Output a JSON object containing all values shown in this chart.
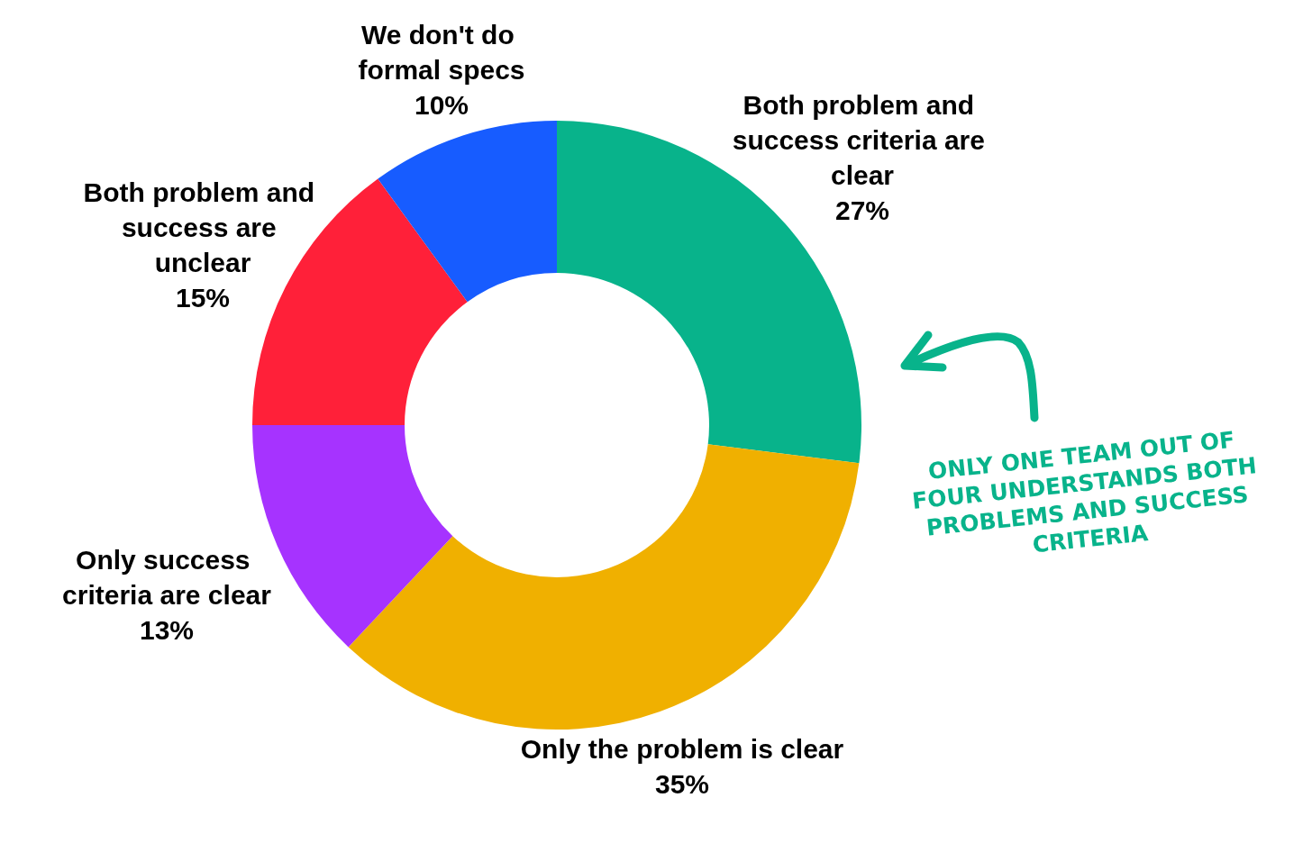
{
  "chart_data": {
    "type": "donut",
    "categories": [
      "Both problem and success criteria are clear",
      "Only the problem is clear",
      "Only success criteria are clear",
      "Both problem and success are unclear",
      "We don't do formal specs"
    ],
    "values": [
      27,
      35,
      13,
      15,
      10
    ],
    "value_labels": [
      "27%",
      "35%",
      "13%",
      "15%",
      "10%"
    ],
    "colors": [
      "#08b38b",
      "#f0b000",
      "#a633ff",
      "#ff2039",
      "#175cff"
    ],
    "legend": false,
    "annotations": [
      "ONLY ONE TEAM OUT OF FOUR UNDERSTANDS BOTH PROBLEMS AND SUCCESS CRITERIA"
    ]
  }
}
